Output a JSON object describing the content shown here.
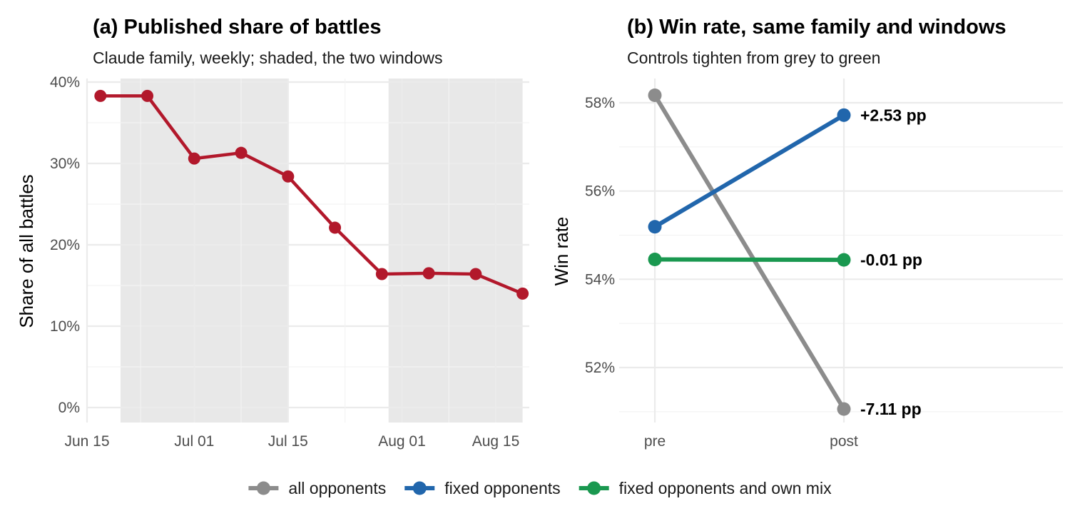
{
  "chart_data": [
    {
      "type": "line",
      "title": "(a) Published share of battles",
      "subtitle": "Claude family, weekly; shaded, the two windows",
      "xlabel": "",
      "ylabel": "Share of all battles",
      "ylim": [
        0,
        40
      ],
      "yticks": [
        0,
        10,
        20,
        30,
        40
      ],
      "ytick_labels": [
        "0%",
        "10%",
        "20%",
        "30%",
        "40%"
      ],
      "xlim": [
        "2024-06-15",
        "2024-08-20"
      ],
      "xticks": [
        "2024-06-15",
        "2024-07-01",
        "2024-07-15",
        "2024-08-01",
        "2024-08-15"
      ],
      "xtick_labels": [
        "Jun 15",
        "Jul 01",
        "Jul 15",
        "Aug 01",
        "Aug 15"
      ],
      "shaded_windows": [
        [
          "2024-06-20",
          "2024-07-15"
        ],
        [
          "2024-07-30",
          "2024-08-19"
        ]
      ],
      "color": "#b2182b",
      "x": [
        "2024-06-17",
        "2024-06-24",
        "2024-07-01",
        "2024-07-08",
        "2024-07-15",
        "2024-07-22",
        "2024-07-29",
        "2024-08-05",
        "2024-08-12",
        "2024-08-19"
      ],
      "values": [
        38.3,
        38.3,
        30.6,
        31.3,
        28.4,
        22.1,
        16.4,
        16.5,
        16.4,
        14.0
      ],
      "grid": true
    },
    {
      "type": "line",
      "title": "(b) Win rate, same family and windows",
      "subtitle": "Controls tighten from grey to green",
      "xlabel": "",
      "ylabel": "Win rate",
      "categories": [
        "pre",
        "post"
      ],
      "ylim": [
        51,
        58.2
      ],
      "yticks": [
        52,
        54,
        56,
        58
      ],
      "ytick_labels": [
        "52%",
        "54%",
        "56%",
        "58%"
      ],
      "grid": true,
      "series": [
        {
          "name": "all opponents",
          "color": "#8c8c8c",
          "values": [
            58.17,
            51.06
          ],
          "label": "-7.11 pp"
        },
        {
          "name": "fixed opponents",
          "color": "#2166ac",
          "values": [
            55.19,
            57.72
          ],
          "label": "+2.53 pp"
        },
        {
          "name": "fixed opponents and own mix",
          "color": "#1a9850",
          "values": [
            54.45,
            54.44
          ],
          "label": "-0.01 pp"
        }
      ]
    }
  ],
  "legend": {
    "placement": "bottom",
    "items": [
      {
        "label": "all opponents",
        "color": "#8c8c8c"
      },
      {
        "label": "fixed opponents",
        "color": "#2166ac"
      },
      {
        "label": "fixed opponents and own mix",
        "color": "#1a9850"
      }
    ]
  }
}
